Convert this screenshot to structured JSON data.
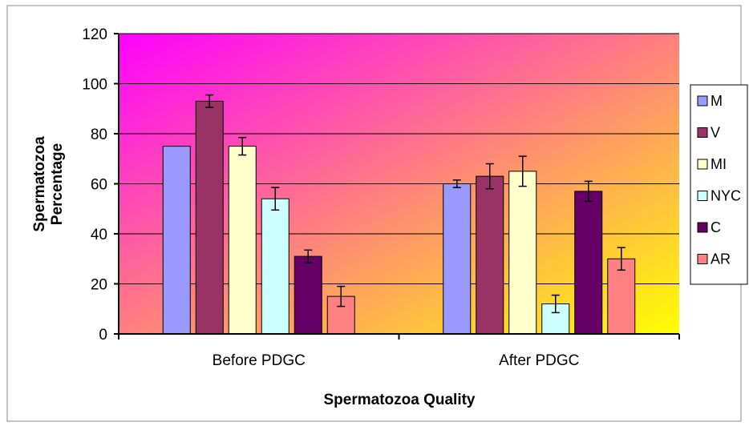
{
  "chart_data": {
    "type": "bar",
    "title": "",
    "xlabel": "Spermatozoa Quality",
    "ylabel_lines": [
      "Spermatozoa",
      "Percentage"
    ],
    "categories": [
      "Before PDGC",
      "After PDGC"
    ],
    "ylim": [
      0,
      120
    ],
    "yticks": [
      0,
      20,
      40,
      60,
      80,
      100,
      120
    ],
    "grid": true,
    "legend_position": "right",
    "series": [
      {
        "name": "M",
        "color": "#9999ff",
        "values": [
          75,
          60
        ],
        "errors": [
          null,
          1.5
        ]
      },
      {
        "name": "V",
        "color": "#993366",
        "values": [
          93,
          63
        ],
        "errors": [
          2.5,
          5
        ]
      },
      {
        "name": "MI",
        "color": "#ffffcc",
        "values": [
          75,
          65
        ],
        "errors": [
          3.5,
          6
        ]
      },
      {
        "name": "NYC",
        "color": "#ccffff",
        "values": [
          54,
          12
        ],
        "errors": [
          4.5,
          3.5
        ]
      },
      {
        "name": "C",
        "color": "#660066",
        "values": [
          31,
          57
        ],
        "errors": [
          2.5,
          4
        ]
      },
      {
        "name": "AR",
        "color": "#ff8080",
        "values": [
          15,
          30
        ],
        "errors": [
          4,
          4.5
        ]
      }
    ],
    "plot_gradient": [
      "#ff00ff",
      "#ffff00"
    ]
  }
}
